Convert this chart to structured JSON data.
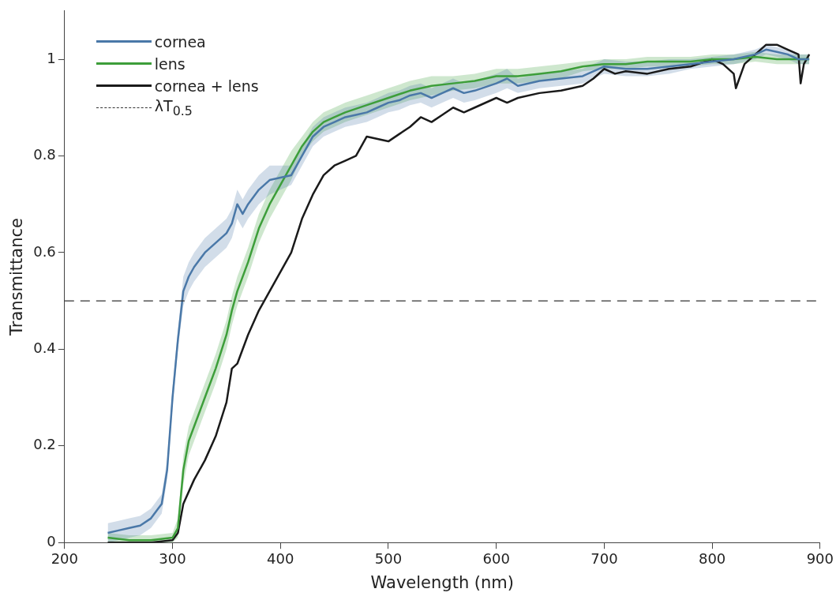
{
  "chart_data": {
    "type": "line",
    "xlabel": "Wavelength (nm)",
    "ylabel": "Transmittance",
    "xlim": [
      200,
      900
    ],
    "xticks": [
      200,
      300,
      400,
      500,
      600,
      700,
      800,
      900
    ],
    "ylim": [
      0,
      1.1
    ],
    "yticks": [
      0,
      0.2,
      0.4,
      0.6,
      0.8,
      1
    ],
    "grid": false,
    "legend": "top left",
    "marker": "none",
    "line_style": "solid",
    "ref_lines": [
      {
        "axis": "y",
        "value": 0.5,
        "label": "λT$_{0.5}$",
        "color": "#333333",
        "line_style": "dashed"
      }
    ],
    "series": [
      {
        "name": "cornea",
        "color": "#4a78a8",
        "x": [
          240,
          250,
          260,
          270,
          280,
          290,
          295,
          300,
          305,
          310,
          315,
          320,
          330,
          340,
          350,
          355,
          360,
          365,
          370,
          380,
          390,
          400,
          410,
          420,
          430,
          440,
          450,
          460,
          470,
          480,
          490,
          500,
          510,
          520,
          530,
          540,
          550,
          560,
          570,
          580,
          600,
          610,
          620,
          640,
          660,
          680,
          700,
          720,
          740,
          760,
          780,
          800,
          820,
          840,
          850,
          860,
          870,
          880,
          890
        ],
        "values": [
          0.02,
          0.025,
          0.03,
          0.035,
          0.05,
          0.08,
          0.15,
          0.3,
          0.42,
          0.52,
          0.55,
          0.57,
          0.6,
          0.62,
          0.64,
          0.66,
          0.7,
          0.68,
          0.7,
          0.73,
          0.75,
          0.755,
          0.76,
          0.8,
          0.84,
          0.86,
          0.87,
          0.88,
          0.885,
          0.89,
          0.9,
          0.91,
          0.915,
          0.925,
          0.93,
          0.92,
          0.93,
          0.94,
          0.93,
          0.935,
          0.95,
          0.96,
          0.945,
          0.955,
          0.96,
          0.965,
          0.985,
          0.98,
          0.98,
          0.985,
          0.99,
          0.995,
          1,
          1.01,
          1.02,
          1.015,
          1.01,
          1,
          1
        ],
        "lower": [
          0,
          0.005,
          0.01,
          0.015,
          0.03,
          0.06,
          0.13,
          0.28,
          0.4,
          0.49,
          0.52,
          0.54,
          0.57,
          0.59,
          0.61,
          0.63,
          0.67,
          0.65,
          0.67,
          0.7,
          0.72,
          0.73,
          0.74,
          0.78,
          0.82,
          0.84,
          0.85,
          0.86,
          0.865,
          0.87,
          0.88,
          0.89,
          0.895,
          0.905,
          0.91,
          0.9,
          0.91,
          0.92,
          0.91,
          0.915,
          0.93,
          0.94,
          0.93,
          0.94,
          0.945,
          0.95,
          0.97,
          0.965,
          0.965,
          0.97,
          0.98,
          0.985,
          0.99,
          1,
          1.01,
          1.005,
          1,
          0.99,
          0.99
        ],
        "upper": [
          0.04,
          0.045,
          0.05,
          0.055,
          0.07,
          0.1,
          0.17,
          0.32,
          0.44,
          0.55,
          0.58,
          0.6,
          0.63,
          0.65,
          0.67,
          0.69,
          0.73,
          0.71,
          0.73,
          0.76,
          0.78,
          0.78,
          0.78,
          0.82,
          0.86,
          0.88,
          0.89,
          0.9,
          0.905,
          0.91,
          0.92,
          0.93,
          0.935,
          0.945,
          0.95,
          0.94,
          0.95,
          0.96,
          0.95,
          0.955,
          0.97,
          0.98,
          0.96,
          0.97,
          0.975,
          0.98,
          1,
          0.995,
          0.995,
          1,
          1,
          1.005,
          1.01,
          1.02,
          1.03,
          1.025,
          1.02,
          1.01,
          1.01
        ]
      },
      {
        "name": "lens",
        "color": "#3d9e3a",
        "x": [
          240,
          260,
          280,
          300,
          305,
          310,
          315,
          320,
          330,
          340,
          350,
          355,
          360,
          370,
          380,
          390,
          400,
          410,
          420,
          430,
          440,
          450,
          460,
          480,
          500,
          520,
          540,
          560,
          580,
          600,
          620,
          640,
          660,
          680,
          700,
          720,
          740,
          760,
          780,
          800,
          820,
          840,
          860,
          880,
          890
        ],
        "values": [
          0.01,
          0.005,
          0.005,
          0.01,
          0.03,
          0.15,
          0.21,
          0.24,
          0.3,
          0.36,
          0.43,
          0.48,
          0.52,
          0.58,
          0.65,
          0.7,
          0.74,
          0.78,
          0.82,
          0.85,
          0.87,
          0.88,
          0.89,
          0.905,
          0.92,
          0.935,
          0.945,
          0.95,
          0.955,
          0.965,
          0.965,
          0.97,
          0.975,
          0.985,
          0.99,
          0.99,
          0.995,
          0.995,
          0.995,
          1,
          1,
          1.005,
          1,
          1,
          1
        ],
        "lower": [
          0,
          0,
          0,
          0,
          0.01,
          0.12,
          0.18,
          0.21,
          0.27,
          0.33,
          0.4,
          0.45,
          0.49,
          0.55,
          0.62,
          0.67,
          0.71,
          0.75,
          0.8,
          0.83,
          0.85,
          0.86,
          0.87,
          0.885,
          0.9,
          0.915,
          0.925,
          0.935,
          0.94,
          0.95,
          0.95,
          0.955,
          0.96,
          0.975,
          0.98,
          0.98,
          0.985,
          0.985,
          0.985,
          0.99,
          0.99,
          0.995,
          0.99,
          0.99,
          0.99
        ],
        "upper": [
          0.02,
          0.015,
          0.015,
          0.02,
          0.05,
          0.18,
          0.24,
          0.27,
          0.33,
          0.39,
          0.46,
          0.51,
          0.55,
          0.61,
          0.68,
          0.73,
          0.77,
          0.81,
          0.84,
          0.87,
          0.89,
          0.9,
          0.91,
          0.925,
          0.94,
          0.955,
          0.965,
          0.965,
          0.97,
          0.98,
          0.98,
          0.985,
          0.99,
          0.995,
          1,
          1,
          1.005,
          1.005,
          1.005,
          1.01,
          1.01,
          1.015,
          1.01,
          1.01,
          1.01
        ]
      },
      {
        "name": "cornea + lens",
        "color": "#1a1a1a",
        "x": [
          240,
          280,
          300,
          305,
          310,
          320,
          330,
          340,
          350,
          355,
          360,
          370,
          380,
          390,
          400,
          410,
          420,
          430,
          440,
          450,
          460,
          470,
          480,
          490,
          500,
          510,
          520,
          530,
          540,
          550,
          560,
          570,
          580,
          600,
          610,
          620,
          640,
          660,
          680,
          690,
          700,
          710,
          720,
          740,
          760,
          780,
          800,
          810,
          820,
          822,
          830,
          840,
          850,
          860,
          870,
          880,
          882,
          885,
          890
        ],
        "values": [
          0,
          0,
          0.005,
          0.02,
          0.08,
          0.13,
          0.17,
          0.22,
          0.29,
          0.36,
          0.37,
          0.43,
          0.48,
          0.52,
          0.56,
          0.6,
          0.67,
          0.72,
          0.76,
          0.78,
          0.79,
          0.8,
          0.84,
          0.835,
          0.83,
          0.845,
          0.86,
          0.88,
          0.87,
          0.885,
          0.9,
          0.89,
          0.9,
          0.92,
          0.91,
          0.92,
          0.93,
          0.935,
          0.945,
          0.96,
          0.98,
          0.97,
          0.975,
          0.97,
          0.98,
          0.985,
          1,
          0.99,
          0.97,
          0.94,
          0.99,
          1.01,
          1.03,
          1.03,
          1.02,
          1.01,
          0.95,
          0.99,
          1.01
        ]
      }
    ]
  }
}
